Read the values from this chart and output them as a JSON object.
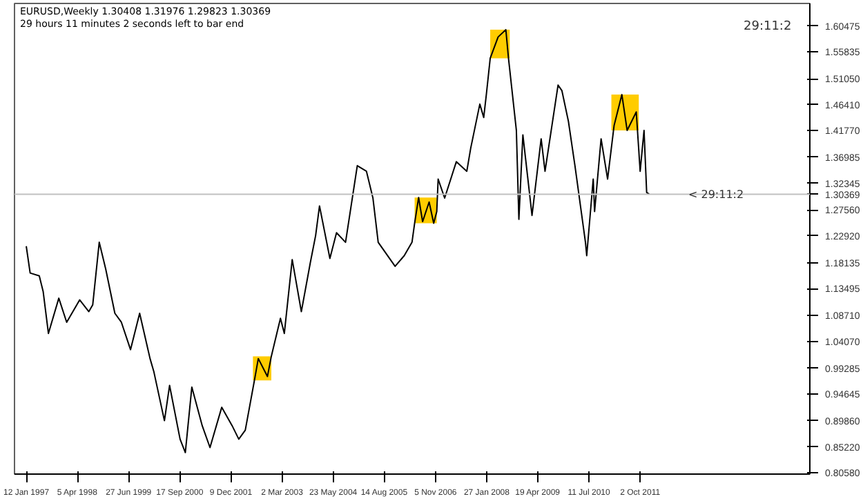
{
  "chart_data": {
    "type": "line",
    "title": "EURUSD,Weekly  1.30408 1.31976 1.29823 1.30369",
    "subtitle": "29 hours 11 minutes 2 seconds left to bar end",
    "x": [
      "1997-01-12",
      "1997-02-15",
      "1997-05-06",
      "1997-06-09",
      "1997-07-25",
      "1997-10-24",
      "1998-01-01",
      "1998-04-25",
      "1998-07-14",
      "1998-08-17",
      "1998-10-13",
      "1998-12-09",
      "1999-02-27",
      "1999-04-25",
      "1999-07-14",
      "1999-10-02",
      "2000-01-01",
      "2000-02-04",
      "2000-05-06",
      "2000-06-20",
      "2000-09-20",
      "2000-11-05",
      "2001-01-01",
      "2001-04-02",
      "2001-06-09",
      "2001-09-20",
      "2001-12-20",
      "2002-02-16",
      "2002-04-14",
      "2002-07-03",
      "2002-08-06",
      "2002-10-25",
      "2002-11-28",
      "2003-02-16",
      "2003-03-22",
      "2003-05-30",
      "2003-08-18",
      "2003-11-05",
      "2003-12-21",
      "2004-01-24",
      "2004-04-24",
      "2004-06-21",
      "2004-09-08",
      "2004-12-20",
      "2005-03-10",
      "2005-05-06",
      "2005-06-21",
      "2005-11-16",
      "2006-02-04",
      "2006-04-13",
      "2006-05-06",
      "2006-06-10",
      "2006-07-15",
      "2006-09-10",
      "2006-10-20",
      "2006-11-16",
      "2006-11-28",
      "2007-01-24",
      "2007-05-06",
      "2007-08-06",
      "2007-09-09",
      "2007-11-28",
      "2008-01-01",
      "2008-01-24",
      "2008-02-27",
      "2008-05-06",
      "2008-07-13",
      "2008-08-05",
      "2008-10-13",
      "2008-11-04",
      "2008-12-09",
      "2009-02-27",
      "2009-05-18",
      "2009-06-21",
      "2009-10-13",
      "2009-11-16",
      "2010-01-12",
      "2010-03-10",
      "2010-06-10",
      "2010-06-21",
      "2010-08-17",
      "2010-08-29",
      "2010-10-25",
      "2010-12-21",
      "2011-02-16",
      "2011-04-25",
      "2011-06-10",
      "2011-08-29",
      "2011-10-02",
      "2011-11-05",
      "2011-11-28",
      "2011-12-21"
    ],
    "series": [
      {
        "color": "#000000",
        "values": [
          1.211,
          1.163,
          1.158,
          1.13,
          1.055,
          1.118,
          1.075,
          1.115,
          1.094,
          1.106,
          1.218,
          1.17,
          1.091,
          1.075,
          1.026,
          1.091,
          1.01,
          0.986,
          0.899,
          0.962,
          0.866,
          0.842,
          0.959,
          0.89,
          0.851,
          0.923,
          0.89,
          0.866,
          0.882,
          0.971,
          1.01,
          0.978,
          1.014,
          1.082,
          1.055,
          1.187,
          1.094,
          1.182,
          1.23,
          1.283,
          1.189,
          1.235,
          1.218,
          1.355,
          1.345,
          1.297,
          1.218,
          1.175,
          1.194,
          1.218,
          1.252,
          1.298,
          1.255,
          1.29,
          1.252,
          1.273,
          1.331,
          1.297,
          1.362,
          1.345,
          1.386,
          1.465,
          1.441,
          1.482,
          1.547,
          1.585,
          1.598,
          1.547,
          1.418,
          1.259,
          1.41,
          1.266,
          1.403,
          1.345,
          1.499,
          1.489,
          1.434,
          1.355,
          1.218,
          1.194,
          1.331,
          1.273,
          1.403,
          1.331,
          1.427,
          1.482,
          1.418,
          1.451,
          1.345,
          1.418,
          1.307,
          1.304
        ]
      }
    ],
    "xlim": [
      "1996-10-01",
      "2015-10-27"
    ],
    "ylim": [
      0.8035,
      1.645
    ],
    "xticks": [
      {
        "value": "1997-01-12",
        "label": "12 Jan 1997"
      },
      {
        "value": "1998-04-05",
        "label": "5 Apr 1998"
      },
      {
        "value": "1999-06-27",
        "label": "27 Jun 1999"
      },
      {
        "value": "2000-09-17",
        "label": "17 Sep 2000"
      },
      {
        "value": "2001-12-09",
        "label": "9 Dec 2001"
      },
      {
        "value": "2003-03-02",
        "label": "2 Mar 2003"
      },
      {
        "value": "2004-05-23",
        "label": "23 May 2004"
      },
      {
        "value": "2005-08-14",
        "label": "14 Aug 2005"
      },
      {
        "value": "2006-11-05",
        "label": "5 Nov 2006"
      },
      {
        "value": "2008-01-27",
        "label": "27 Jan 2008"
      },
      {
        "value": "2009-04-19",
        "label": "19 Apr 2009"
      },
      {
        "value": "2010-07-11",
        "label": "11 Jul 2010"
      },
      {
        "value": "2011-10-02",
        "label": "2 Oct 2011"
      }
    ],
    "yticks": [
      {
        "value": 1.60475,
        "label": "1.60475"
      },
      {
        "value": 1.55835,
        "label": "1.55835"
      },
      {
        "value": 1.5105,
        "label": "1.51050"
      },
      {
        "value": 1.4641,
        "label": "1.46410"
      },
      {
        "value": 1.4177,
        "label": "1.41770"
      },
      {
        "value": 1.36985,
        "label": "1.36985"
      },
      {
        "value": 1.32345,
        "label": "1.32345"
      },
      {
        "value": 1.2756,
        "label": "1.27560"
      },
      {
        "value": 1.2292,
        "label": "1.22920"
      },
      {
        "value": 1.18135,
        "label": "1.18135"
      },
      {
        "value": 1.13495,
        "label": "1.13495"
      },
      {
        "value": 1.0871,
        "label": "1.08710"
      },
      {
        "value": 1.0407,
        "label": "1.04070"
      },
      {
        "value": 0.99285,
        "label": "0.99285"
      },
      {
        "value": 0.94645,
        "label": "0.94645"
      },
      {
        "value": 0.8986,
        "label": "0.89860"
      },
      {
        "value": 0.8522,
        "label": "0.85220"
      },
      {
        "value": 0.8058,
        "label": "0.80580"
      }
    ],
    "ref_lines": [
      {
        "axis": "y",
        "value": 1.30369,
        "label": "1.30369",
        "color": "#c0c0c0"
      }
    ],
    "bands": [
      {
        "axis": "x",
        "from": "2002-06-20",
        "to": "2002-11-28",
        "color": "#ffcc00"
      },
      {
        "axis": "x",
        "from": "2006-05-06",
        "to": "2006-11-16",
        "color": "#ffcc00"
      },
      {
        "axis": "x",
        "from": "2008-02-27",
        "to": "2008-08-16",
        "color": "#ffcc00"
      },
      {
        "axis": "x",
        "from": "2011-01-23",
        "to": "2011-09-20",
        "color": "#ffcc00"
      }
    ],
    "annotations": [
      "29:11:2",
      {
        "text": "< 29:11:2",
        "x": "2012-11-27",
        "y": 1.30369
      }
    ],
    "grid": false
  }
}
